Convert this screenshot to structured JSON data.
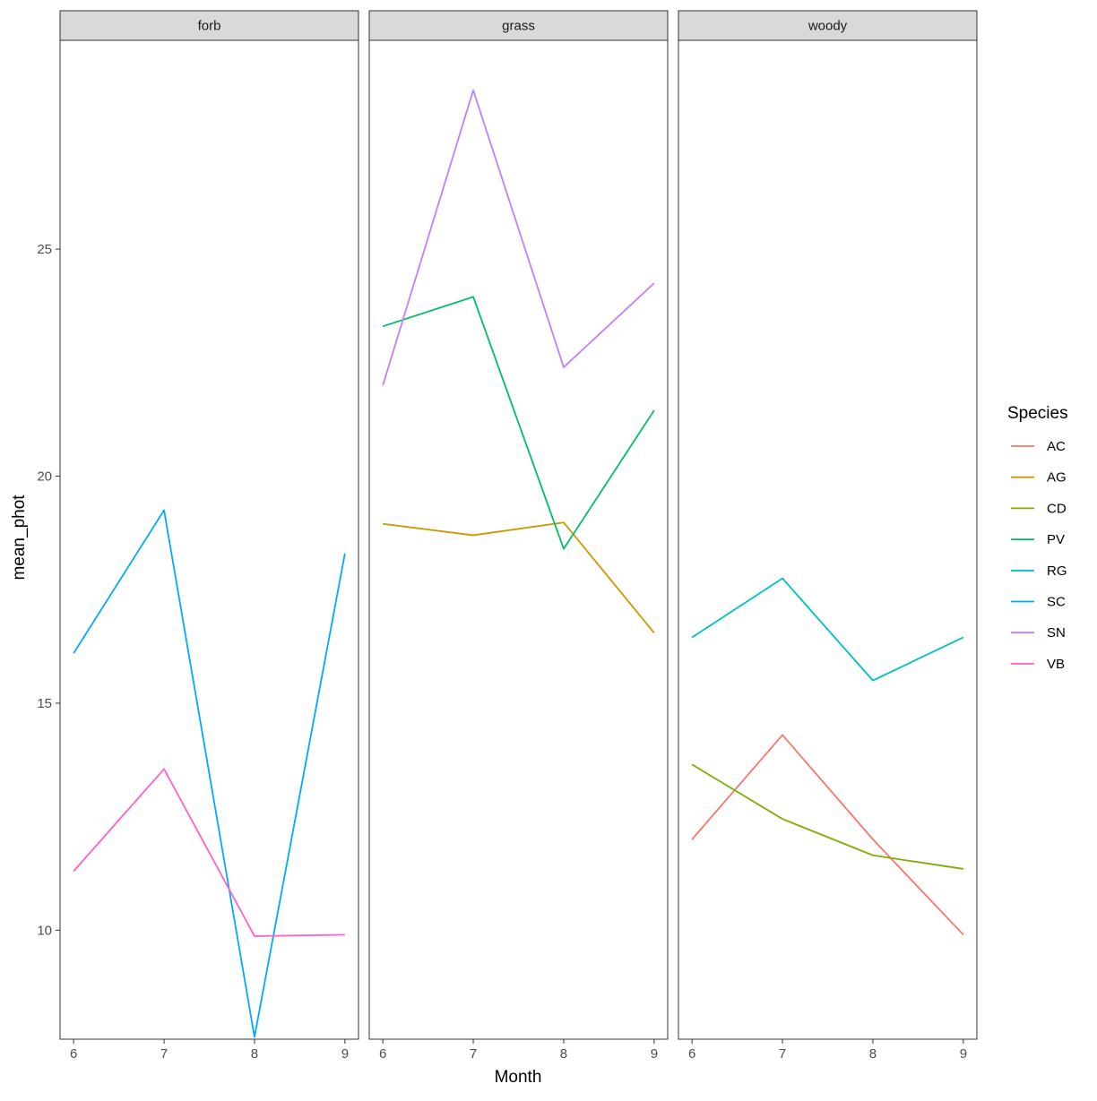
{
  "chart_data": {
    "type": "line",
    "facet_by": "group",
    "panels": [
      {
        "label": "forb",
        "series": [
          {
            "name": "SC",
            "x": [
              6,
              7,
              8,
              9
            ],
            "y": [
              16.1,
              19.25,
              7.65,
              18.3
            ]
          },
          {
            "name": "VB",
            "x": [
              6,
              7,
              8,
              9
            ],
            "y": [
              11.3,
              13.55,
              9.87,
              9.9
            ]
          }
        ]
      },
      {
        "label": "grass",
        "series": [
          {
            "name": "AG",
            "x": [
              6,
              7,
              8,
              9
            ],
            "y": [
              18.95,
              18.7,
              18.98,
              16.55
            ]
          },
          {
            "name": "PV",
            "x": [
              6,
              7,
              8,
              9
            ],
            "y": [
              23.3,
              23.95,
              18.4,
              21.45
            ]
          },
          {
            "name": "SN",
            "x": [
              6,
              7,
              8,
              9
            ],
            "y": [
              22.0,
              28.5,
              22.4,
              24.25
            ]
          }
        ]
      },
      {
        "label": "woody",
        "series": [
          {
            "name": "AC",
            "x": [
              6,
              7,
              8,
              9
            ],
            "y": [
              12.0,
              14.3,
              12.0,
              9.9
            ]
          },
          {
            "name": "CD",
            "x": [
              6,
              7,
              8,
              9
            ],
            "y": [
              13.65,
              12.45,
              11.65,
              11.35
            ]
          },
          {
            "name": "RG",
            "x": [
              6,
              7,
              8,
              9
            ],
            "y": [
              16.45,
              17.75,
              15.5,
              16.45
            ]
          }
        ]
      }
    ],
    "xlabel": "Month",
    "ylabel": "mean_phot",
    "x_ticks": [
      "6",
      "7",
      "8",
      "9"
    ],
    "y_ticks": [
      "10",
      "15",
      "20",
      "25"
    ],
    "xlim": [
      5.85,
      9.15
    ],
    "ylim": [
      7.6,
      29.6
    ],
    "legend_title": "Species",
    "legend_position": "right",
    "legend": [
      {
        "name": "AC",
        "color": "#F8766D"
      },
      {
        "name": "AG",
        "color": "#CD9600"
      },
      {
        "name": "CD",
        "color": "#7CAE00"
      },
      {
        "name": "PV",
        "color": "#00BE67"
      },
      {
        "name": "RG",
        "color": "#00BFC4"
      },
      {
        "name": "SC",
        "color": "#00A9FF"
      },
      {
        "name": "SN",
        "color": "#C77CFF"
      },
      {
        "name": "VB",
        "color": "#FF61CC"
      }
    ],
    "grid": false
  }
}
